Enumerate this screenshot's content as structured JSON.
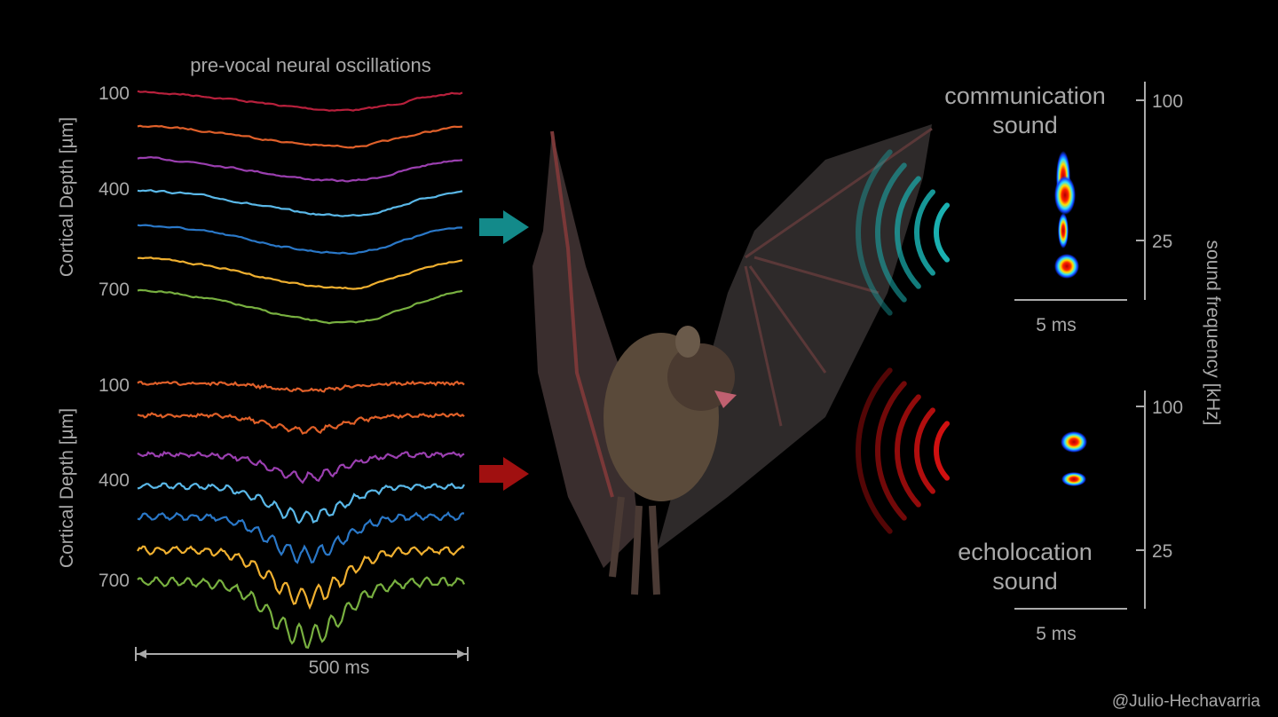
{
  "title": "pre-vocal neural oscillations",
  "panels": [
    {
      "axis_label": "Cortical Depth [µm]",
      "ticks": [
        "100",
        "400",
        "700"
      ]
    },
    {
      "axis_label": "Cortical Depth [µm]",
      "ticks": [
        "100",
        "400",
        "700"
      ]
    }
  ],
  "time_scale": "500 ms",
  "sounds": [
    {
      "label_lines": [
        "communication",
        "sound"
      ],
      "scale": "5 ms",
      "freq_ticks": [
        "100",
        "25"
      ]
    },
    {
      "label_lines": [
        "echolocation",
        "sound"
      ],
      "scale": "5 ms",
      "freq_ticks": [
        "100",
        "25"
      ]
    }
  ],
  "freq_axis_label": "sound frequency [kHz]",
  "credit": "@Julio-Hechavarria"
}
